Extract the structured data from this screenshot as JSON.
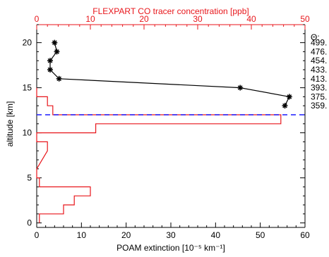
{
  "chart_data": {
    "type": "line",
    "top_axis": {
      "label": "FLEXPART CO tracer concentration [ppb]",
      "range": [
        0,
        50
      ],
      "ticks": [
        "0",
        "10",
        "20",
        "30",
        "40",
        "50"
      ],
      "color": "#e8161b"
    },
    "bottom_axis": {
      "label": "POAM extinction [10⁻⁵ km⁻¹]",
      "range": [
        0,
        60
      ],
      "ticks": [
        "0",
        "10",
        "20",
        "30",
        "40",
        "50",
        "60"
      ]
    },
    "left_axis": {
      "label": "altitude [km]",
      "range": [
        -0.5,
        22
      ],
      "ticks": [
        "0",
        "5",
        "10",
        "15",
        "20"
      ]
    },
    "right_axis": {
      "title": "Θ:",
      "labels": [
        {
          "text": "499.",
          "alt": 20
        },
        {
          "text": "476.",
          "alt": 19
        },
        {
          "text": "454.",
          "alt": 18
        },
        {
          "text": "433.",
          "alt": 17
        },
        {
          "text": "413.",
          "alt": 16
        },
        {
          "text": "393.",
          "alt": 15
        },
        {
          "text": "375.",
          "alt": 14
        },
        {
          "text": "359.",
          "alt": 13
        }
      ]
    },
    "series": [
      {
        "color": "#000000",
        "axis": "bottom",
        "marker": "asterisk",
        "points": [
          [
            4,
            20
          ],
          [
            4.5,
            19
          ],
          [
            3,
            18
          ],
          [
            3,
            17
          ],
          [
            5,
            16
          ],
          [
            45.5,
            15
          ],
          [
            56.5,
            14
          ],
          [
            55.5,
            13
          ]
        ]
      },
      {
        "color": "#e8161b",
        "axis": "top",
        "style": "step",
        "segments": [
          [
            0,
            15
          ],
          [
            2,
            14
          ],
          [
            3,
            13
          ],
          [
            45.5,
            12
          ],
          [
            11,
            11
          ],
          [
            0,
            10
          ],
          [
            2,
            9
          ],
          [
            0,
            6
          ],
          [
            0.5,
            5
          ],
          [
            10,
            4
          ],
          [
            7,
            3
          ],
          [
            5,
            2
          ],
          [
            0.5,
            1
          ]
        ]
      }
    ],
    "reference_line": {
      "alt": 12,
      "color": "#1a1aff",
      "style": "dashed"
    }
  }
}
